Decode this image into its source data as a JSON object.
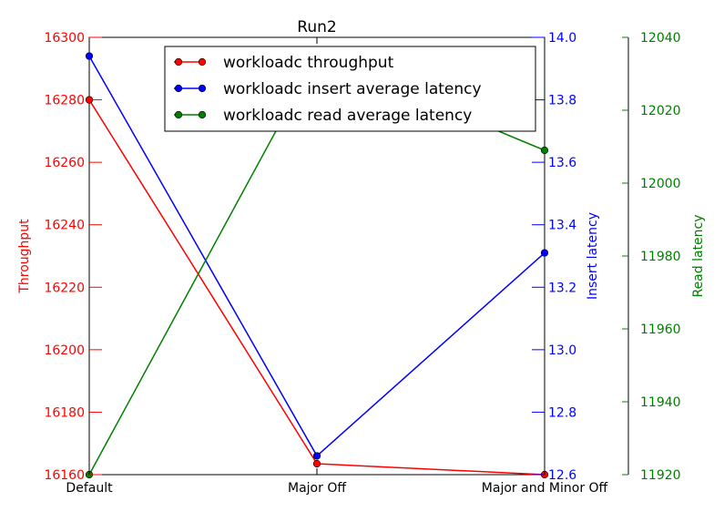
{
  "chart_data": {
    "type": "line",
    "title": "Run2",
    "categories": [
      "Default",
      "Major Off",
      "Major and Minor Off"
    ],
    "axes": {
      "left": {
        "label": "Throughput",
        "ylim": [
          16160,
          16300
        ],
        "ticks": [
          16160,
          16180,
          16200,
          16220,
          16240,
          16260,
          16280,
          16300
        ],
        "color": "#ff0000",
        "decimals": 0
      },
      "right": {
        "label": "Insert latency",
        "ylim": [
          12.6,
          14.0
        ],
        "ticks": [
          12.6,
          12.8,
          13.0,
          13.2,
          13.4,
          13.6,
          13.8,
          14.0
        ],
        "color": "#0000ff",
        "decimals": 1
      },
      "far_right": {
        "label": "Read latency",
        "ylim": [
          11920,
          12040
        ],
        "ticks": [
          11920,
          11940,
          11960,
          11980,
          12000,
          12020,
          12040
        ],
        "color": "#008000",
        "decimals": 0
      }
    },
    "series": [
      {
        "name": "workloadc throughput",
        "axis": "left",
        "color": "#ff0000",
        "values": [
          16280,
          16163.5,
          16160
        ]
      },
      {
        "name": "workloadc insert average latency",
        "axis": "right",
        "color": "#0000ff",
        "values": [
          13.94,
          12.66,
          13.31
        ]
      },
      {
        "name": "workloadc read average latency",
        "axis": "far_right",
        "color": "#008000",
        "values": [
          11920,
          12035,
          12009
        ]
      }
    ],
    "legend": "top-center",
    "grid": false
  }
}
